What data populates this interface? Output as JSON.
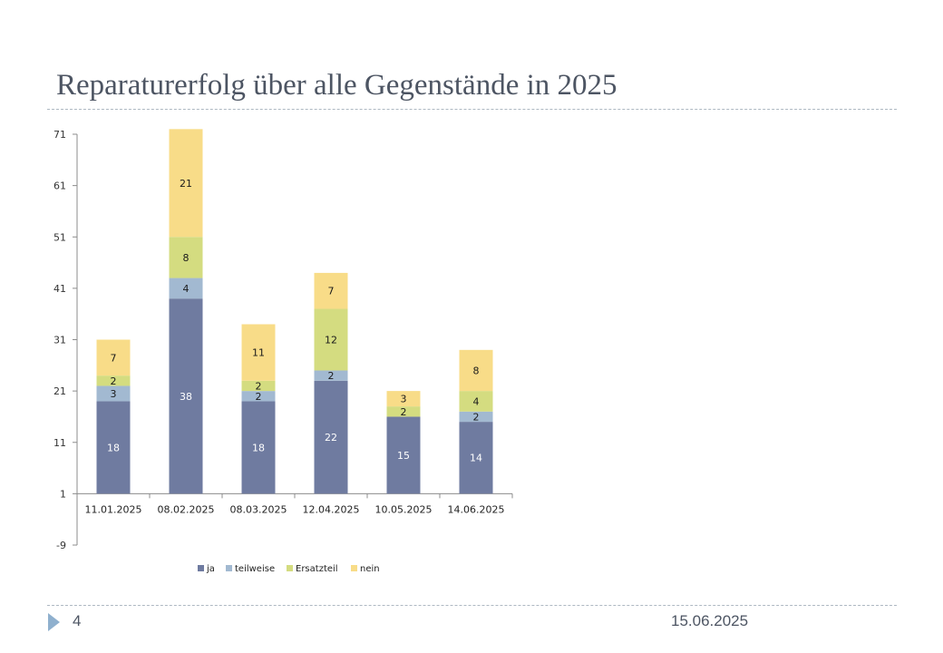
{
  "slide": {
    "title": "Reparaturerfolg über alle Gegenstände in 2025",
    "page_number": "4",
    "date": "15.06.2025"
  },
  "chart_data": {
    "type": "bar",
    "stacked": true,
    "title": "",
    "xlabel": "",
    "ylabel": "",
    "categories": [
      "11.01.2025",
      "08.02.2025",
      "08.03.2025",
      "12.04.2025",
      "10.05.2025",
      "14.06.2025"
    ],
    "series": [
      {
        "name": "ja",
        "values": [
          18,
          38,
          18,
          22,
          15,
          14
        ],
        "color": "#6f7ba0"
      },
      {
        "name": "teilweise",
        "values": [
          3,
          4,
          2,
          2,
          0,
          2
        ],
        "color": "#a2b9d1"
      },
      {
        "name": "Ersatzteil",
        "values": [
          2,
          8,
          2,
          12,
          2,
          4
        ],
        "color": "#d4dc80"
      },
      {
        "name": "nein",
        "values": [
          7,
          21,
          11,
          7,
          3,
          8
        ],
        "color": "#f8dc88"
      }
    ],
    "y_ticks": [
      "71",
      "61",
      "51",
      "41",
      "31",
      "21",
      "11",
      "1",
      "-9"
    ],
    "ylim": [
      -9,
      71
    ],
    "grid": false,
    "legend_position": "bottom"
  }
}
